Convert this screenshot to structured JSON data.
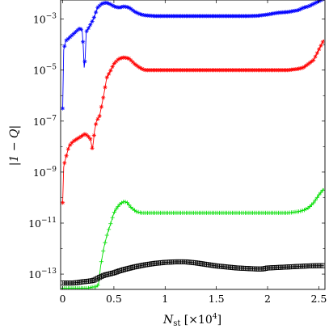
{
  "chart_data": {
    "type": "line",
    "title": "",
    "xlabel": {
      "main": "N",
      "sub": "st",
      "unit_prefix": " [×10",
      "unit_exp": "4",
      "unit_suffix": "]"
    },
    "ylabel": "|1 − Q|",
    "xlim": [
      -0.02,
      2.56
    ],
    "ylim": [
      -13.6,
      -2.25
    ],
    "yscale": "log",
    "xticks": [
      {
        "value": 0,
        "label": "0"
      },
      {
        "value": 0.5,
        "label": "0.5"
      },
      {
        "value": 1,
        "label": "1"
      },
      {
        "value": 1.5,
        "label": "1.5"
      },
      {
        "value": 2,
        "label": "2"
      },
      {
        "value": 2.5,
        "label": "2.5"
      }
    ],
    "yticks": [
      {
        "exp": -3,
        "label_base": "10",
        "label_exp": "−3"
      },
      {
        "exp": -5,
        "label_base": "10",
        "label_exp": "−5"
      },
      {
        "exp": -7,
        "label_base": "10",
        "label_exp": "−7"
      },
      {
        "exp": -9,
        "label_base": "10",
        "label_exp": "−9"
      },
      {
        "exp": -11,
        "label_base": "10",
        "label_exp": "−11"
      },
      {
        "exp": -13,
        "label_base": "10",
        "label_exp": "−13"
      }
    ],
    "grid": false,
    "series": [
      {
        "color": "#0000ff",
        "marker": "star",
        "points": [
          [
            0.0,
            -6.5
          ],
          [
            0.01,
            -4.2
          ],
          [
            0.03,
            -3.85
          ],
          [
            0.06,
            -3.75
          ],
          [
            0.1,
            -3.6
          ],
          [
            0.14,
            -3.45
          ],
          [
            0.17,
            -3.35
          ],
          [
            0.19,
            -3.45
          ],
          [
            0.2,
            -4.0
          ],
          [
            0.21,
            -4.9
          ],
          [
            0.22,
            -4.5
          ],
          [
            0.23,
            -3.5
          ],
          [
            0.26,
            -3.3
          ],
          [
            0.3,
            -3.0
          ],
          [
            0.34,
            -2.55
          ],
          [
            0.38,
            -2.4
          ],
          [
            0.42,
            -2.35
          ],
          [
            0.46,
            -2.4
          ],
          [
            0.5,
            -2.5
          ],
          [
            0.55,
            -2.55
          ],
          [
            0.6,
            -2.5
          ],
          [
            0.65,
            -2.55
          ],
          [
            0.7,
            -2.7
          ],
          [
            0.75,
            -2.8
          ],
          [
            0.8,
            -2.85
          ],
          [
            0.9,
            -2.88
          ],
          [
            1.0,
            -2.88
          ],
          [
            1.2,
            -2.88
          ],
          [
            1.4,
            -2.88
          ],
          [
            1.6,
            -2.88
          ],
          [
            1.8,
            -2.88
          ],
          [
            1.9,
            -2.87
          ],
          [
            2.0,
            -2.82
          ],
          [
            2.1,
            -2.75
          ],
          [
            2.2,
            -2.72
          ],
          [
            2.3,
            -2.65
          ],
          [
            2.35,
            -2.55
          ],
          [
            2.4,
            -2.5
          ],
          [
            2.45,
            -2.4
          ],
          [
            2.5,
            -2.3
          ],
          [
            2.55,
            -2.2
          ]
        ]
      },
      {
        "color": "#ff0000",
        "marker": "star",
        "points": [
          [
            0.0,
            -10.2
          ],
          [
            0.01,
            -8.8
          ],
          [
            0.02,
            -8.6
          ],
          [
            0.04,
            -8.3
          ],
          [
            0.06,
            -8.0
          ],
          [
            0.1,
            -7.8
          ],
          [
            0.14,
            -7.7
          ],
          [
            0.18,
            -7.6
          ],
          [
            0.22,
            -7.5
          ],
          [
            0.25,
            -7.6
          ],
          [
            0.27,
            -7.7
          ],
          [
            0.29,
            -8.1
          ],
          [
            0.3,
            -7.8
          ],
          [
            0.31,
            -7.4
          ],
          [
            0.33,
            -7.0
          ],
          [
            0.36,
            -6.8
          ],
          [
            0.38,
            -6.4
          ],
          [
            0.4,
            -6.0
          ],
          [
            0.43,
            -5.3
          ],
          [
            0.47,
            -5.0
          ],
          [
            0.5,
            -4.75
          ],
          [
            0.55,
            -4.55
          ],
          [
            0.6,
            -4.5
          ],
          [
            0.65,
            -4.55
          ],
          [
            0.7,
            -4.75
          ],
          [
            0.75,
            -4.9
          ],
          [
            0.8,
            -5.0
          ],
          [
            1.0,
            -5.0
          ],
          [
            1.5,
            -5.0
          ],
          [
            2.0,
            -5.0
          ],
          [
            2.2,
            -5.0
          ],
          [
            2.3,
            -4.95
          ],
          [
            2.35,
            -4.9
          ],
          [
            2.4,
            -4.75
          ],
          [
            2.45,
            -4.6
          ],
          [
            2.5,
            -4.2
          ],
          [
            2.55,
            -3.8
          ]
        ]
      },
      {
        "color": "#00dd00",
        "marker": "plus",
        "points": [
          [
            0.0,
            -13.55
          ],
          [
            0.05,
            -13.55
          ],
          [
            0.1,
            -13.55
          ],
          [
            0.15,
            -13.55
          ],
          [
            0.2,
            -13.55
          ],
          [
            0.25,
            -13.55
          ],
          [
            0.3,
            -13.5
          ],
          [
            0.33,
            -13.5
          ],
          [
            0.35,
            -13.4
          ],
          [
            0.37,
            -12.7
          ],
          [
            0.4,
            -12.0
          ],
          [
            0.43,
            -11.5
          ],
          [
            0.47,
            -11.0
          ],
          [
            0.5,
            -10.6
          ],
          [
            0.53,
            -10.4
          ],
          [
            0.56,
            -10.25
          ],
          [
            0.6,
            -10.15
          ],
          [
            0.63,
            -10.2
          ],
          [
            0.67,
            -10.4
          ],
          [
            0.72,
            -10.55
          ],
          [
            0.77,
            -10.6
          ],
          [
            0.85,
            -10.6
          ],
          [
            1.0,
            -10.6
          ],
          [
            1.5,
            -10.6
          ],
          [
            2.0,
            -10.6
          ],
          [
            2.2,
            -10.6
          ],
          [
            2.3,
            -10.55
          ],
          [
            2.35,
            -10.5
          ],
          [
            2.4,
            -10.4
          ],
          [
            2.45,
            -10.2
          ],
          [
            2.5,
            -9.9
          ],
          [
            2.55,
            -9.65
          ]
        ]
      },
      {
        "color": "#000000",
        "marker": "square",
        "points": [
          [
            0.0,
            -13.35
          ],
          [
            0.05,
            -13.35
          ],
          [
            0.1,
            -13.35
          ],
          [
            0.15,
            -13.33
          ],
          [
            0.2,
            -13.3
          ],
          [
            0.25,
            -13.28
          ],
          [
            0.3,
            -13.25
          ],
          [
            0.35,
            -13.15
          ],
          [
            0.4,
            -13.05
          ],
          [
            0.45,
            -13.0
          ],
          [
            0.5,
            -12.95
          ],
          [
            0.55,
            -12.88
          ],
          [
            0.6,
            -12.82
          ],
          [
            0.7,
            -12.72
          ],
          [
            0.8,
            -12.64
          ],
          [
            0.9,
            -12.58
          ],
          [
            1.0,
            -12.54
          ],
          [
            1.1,
            -12.52
          ],
          [
            1.2,
            -12.52
          ],
          [
            1.3,
            -12.56
          ],
          [
            1.4,
            -12.62
          ],
          [
            1.5,
            -12.68
          ],
          [
            1.6,
            -12.72
          ],
          [
            1.7,
            -12.76
          ],
          [
            1.8,
            -12.78
          ],
          [
            1.9,
            -12.8
          ],
          [
            1.95,
            -12.8
          ],
          [
            2.0,
            -12.76
          ],
          [
            2.1,
            -12.74
          ],
          [
            2.2,
            -12.72
          ],
          [
            2.3,
            -12.7
          ],
          [
            2.4,
            -12.68
          ],
          [
            2.5,
            -12.67
          ],
          [
            2.55,
            -12.67
          ]
        ]
      }
    ]
  }
}
